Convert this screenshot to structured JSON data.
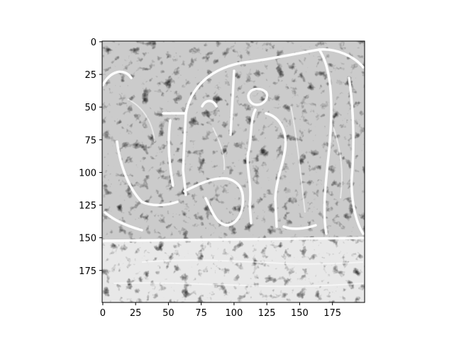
{
  "chart_data": {
    "type": "heatmap",
    "title": "",
    "xlabel": "",
    "ylabel": "",
    "colormap": "gray",
    "image_shape": [
      200,
      200
    ],
    "xlim": [
      -0.5,
      199.5
    ],
    "ylim": [
      199.5,
      -0.5
    ],
    "y_axis_inverted": true,
    "grid": false,
    "legend": "none",
    "x_ticks": [
      0,
      25,
      50,
      75,
      100,
      125,
      150,
      175
    ],
    "y_ticks": [
      0,
      25,
      50,
      75,
      100,
      125,
      150,
      175
    ],
    "x_tick_labels": [
      "0",
      "25",
      "50",
      "75",
      "100",
      "125",
      "150",
      "175"
    ],
    "y_tick_labels": [
      "0",
      "25",
      "50",
      "75",
      "100",
      "125",
      "150",
      "175"
    ],
    "image_description_only_not_printed": false
  },
  "colors": {
    "background": "#ffffff",
    "axis": "#000000",
    "image_dark": "#1a1a1a",
    "image_light": "#f2f2f2"
  }
}
